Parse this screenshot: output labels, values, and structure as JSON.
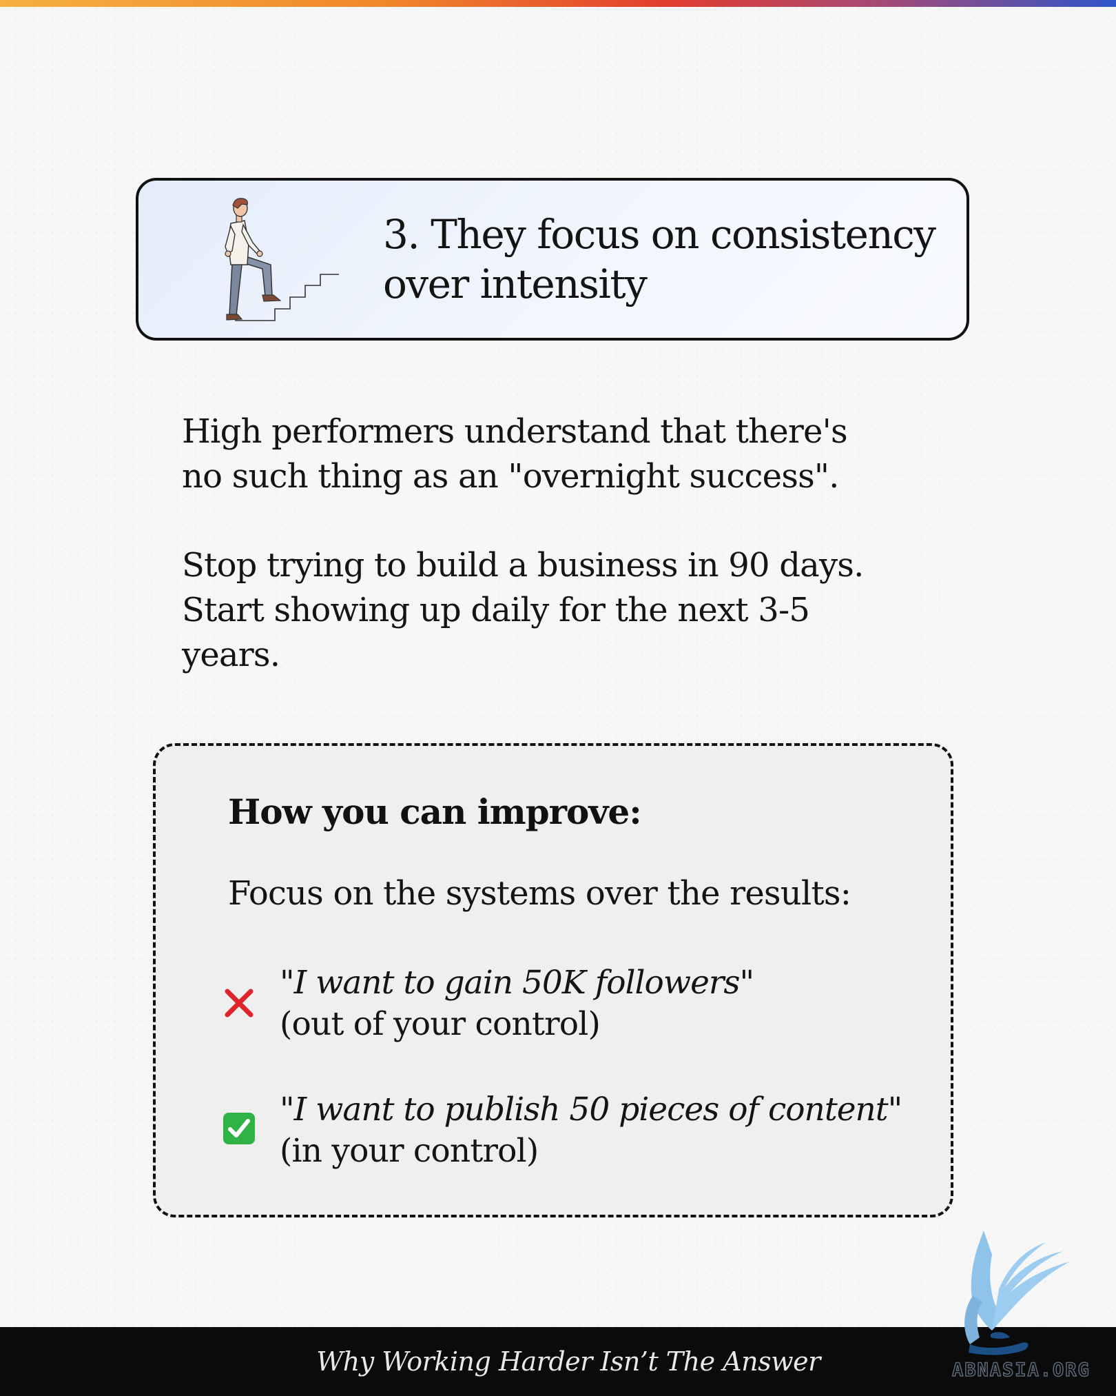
{
  "title_card": {
    "title_line1": "3. They focus on consistency",
    "title_line2": "over intensity",
    "illustration": "man-climbing-stairs-illustration"
  },
  "body": {
    "para1_line1": "High performers understand that there's",
    "para1_line2": "no such thing as an \"overnight success\".",
    "para2_line1": "Stop trying to build a business in 90 days.",
    "para2_line2": "Start showing up daily for the next 3-5",
    "para2_line3": "years."
  },
  "tip_box": {
    "heading": "How you can improve:",
    "intro": "Focus on the systems over the results:",
    "examples": [
      {
        "icon": "cross-mark-icon",
        "quote": "\"I want to gain 50K followers\"",
        "note": "(out of your control)"
      },
      {
        "icon": "check-mark-icon",
        "quote": "\"I want to publish 50 pieces of content\"",
        "note": "(in your control)"
      }
    ]
  },
  "footer": {
    "caption": "Why Working Harder Isn’t The Answer"
  },
  "watermark": {
    "logo_icon": "griffin-bird-icon",
    "text": "ABNASIA.ORG"
  },
  "colors": {
    "top_gradient": [
      "#f5b041",
      "#f0862a",
      "#e23c2f",
      "#a04a7a",
      "#2e56c9"
    ],
    "card_background": "#e4edfa",
    "tip_background": "#efefef",
    "footer_background": "#0b0b0b",
    "cross_red": "#e0242b",
    "check_green": "#2fb344",
    "logo_blue": "#8fc3ea"
  }
}
